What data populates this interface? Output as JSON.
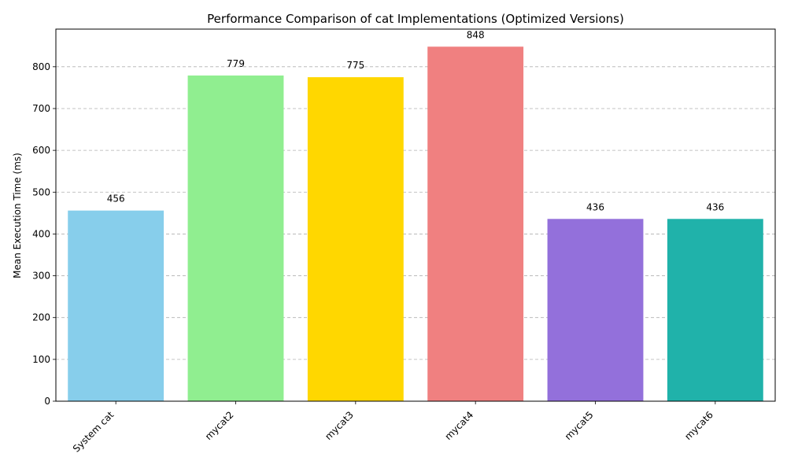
{
  "chart_data": {
    "type": "bar",
    "title": "Performance Comparison of cat Implementations (Optimized Versions)",
    "xlabel": "",
    "ylabel": "Mean Execution Time (ms)",
    "ylim": [
      0,
      890
    ],
    "yticks": [
      0,
      100,
      200,
      300,
      400,
      500,
      600,
      700,
      800
    ],
    "grid": "y-dashed",
    "categories": [
      "System cat",
      "mycat2",
      "mycat3",
      "mycat4",
      "mycat5",
      "mycat6"
    ],
    "values": [
      456,
      779,
      775,
      848,
      436,
      436
    ],
    "data_labels": [
      "456",
      "779",
      "775",
      "848",
      "436",
      "436"
    ],
    "colors": [
      "#87ceeb",
      "#90ee90",
      "#ffd700",
      "#f08080",
      "#9370db",
      "#20b2aa"
    ]
  }
}
